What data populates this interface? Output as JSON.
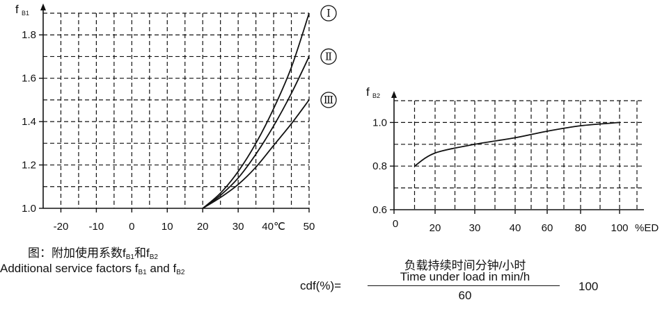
{
  "chart_data": [
    {
      "type": "line",
      "title": "",
      "ylabel": "f",
      "ylabel_sub": "B1",
      "xlabel": "",
      "x_unit_label": "40℃",
      "x_ticks": [
        -20,
        -10,
        0,
        10,
        20,
        30,
        40,
        50
      ],
      "x_tick_labels": [
        "-20",
        "-10",
        "0",
        "10",
        "20",
        "30",
        "40℃",
        "50"
      ],
      "xlim": [
        -25,
        50
      ],
      "y_ticks": [
        1.0,
        1.2,
        1.4,
        1.6,
        1.8
      ],
      "y_tick_labels": [
        "1.0",
        "1.2",
        "1.4",
        "1.6",
        "1.8"
      ],
      "ylim": [
        1.0,
        1.9
      ],
      "grid": true,
      "series": [
        {
          "name": "Ⅰ",
          "x": [
            20,
            25,
            30,
            35,
            40,
            45,
            50
          ],
          "y": [
            1.0,
            1.07,
            1.17,
            1.3,
            1.46,
            1.65,
            1.9
          ]
        },
        {
          "name": "Ⅱ",
          "x": [
            20,
            25,
            30,
            35,
            40,
            45,
            50
          ],
          "y": [
            1.0,
            1.06,
            1.14,
            1.25,
            1.38,
            1.53,
            1.7
          ]
        },
        {
          "name": "Ⅲ",
          "x": [
            20,
            25,
            30,
            35,
            40,
            45,
            50
          ],
          "y": [
            1.0,
            1.05,
            1.11,
            1.19,
            1.29,
            1.39,
            1.5
          ]
        }
      ]
    },
    {
      "type": "line",
      "title": "",
      "ylabel": "f",
      "ylabel_sub": "B2",
      "xlabel": "",
      "x_unit_label": "%ED",
      "x_ticks": [
        0,
        20,
        30,
        40,
        60,
        80,
        100
      ],
      "x_tick_labels": [
        "0",
        "20",
        "30",
        "40",
        "60",
        "80",
        "100"
      ],
      "y_ticks": [
        0.6,
        0.8,
        1.0
      ],
      "y_tick_labels": [
        "0.6",
        "0.8",
        "1.0"
      ],
      "ylim": [
        0.6,
        1.1
      ],
      "grid": true,
      "series": [
        {
          "x": [
            10,
            20,
            30,
            40,
            60,
            80,
            100
          ],
          "y": [
            0.8,
            0.86,
            0.9,
            0.93,
            0.96,
            0.985,
            1.0
          ]
        }
      ]
    }
  ],
  "caption": {
    "zh_prefix": "图：附加使用系数",
    "zh_conj": "和",
    "en_prefix": "Additional service factors ",
    "en_conj": " and ",
    "f": "f",
    "sub1": "B1",
    "sub2": "B2"
  },
  "formula": {
    "lhs": "cdf(%)=",
    "numerator_zh": "负载持续时间分钟/小时",
    "numerator_en": "Time under load in min/h",
    "denominator": "60",
    "multiplier": "100"
  },
  "colors": {
    "ink": "#111111",
    "background": "#ffffff"
  }
}
